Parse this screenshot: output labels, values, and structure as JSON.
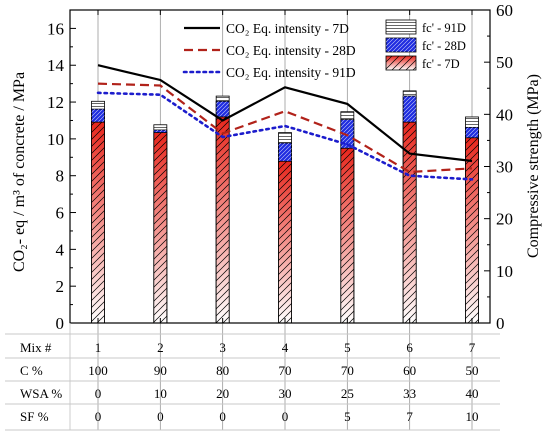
{
  "chart_data": {
    "type": "bar",
    "categories": [
      "1",
      "2",
      "3",
      "4",
      "5",
      "6",
      "7"
    ],
    "left_axis": {
      "label": "CO₂- eq / m³ of concrete / MPa",
      "ylim": [
        0,
        17
      ],
      "ticks": [
        0,
        2,
        4,
        6,
        8,
        10,
        12,
        14,
        16
      ]
    },
    "right_axis": {
      "label": "Compressive strength (MPa)",
      "ylim": [
        0,
        60
      ],
      "ticks": [
        0,
        10,
        20,
        30,
        40,
        50,
        60
      ]
    },
    "bar_series": [
      {
        "name": "fc' - 91D",
        "axis": "right",
        "values": [
          42.5,
          38.0,
          43.5,
          36.5,
          40.5,
          44.5,
          39.5
        ]
      },
      {
        "name": "fc' - 28D",
        "axis": "right",
        "values": [
          41.0,
          37.0,
          42.5,
          34.5,
          39.0,
          43.5,
          37.5
        ]
      },
      {
        "name": "fc' - 7D",
        "axis": "right",
        "values": [
          38.5,
          36.5,
          39.5,
          31.0,
          33.5,
          38.5,
          35.5
        ]
      }
    ],
    "line_series": [
      {
        "name": "CO₂ Eq. intensity - 7D",
        "axis": "left",
        "style": "solid",
        "values": [
          14.0,
          13.2,
          11.0,
          12.8,
          11.9,
          9.2,
          8.8
        ]
      },
      {
        "name": "CO₂ Eq. intensity - 28D",
        "axis": "left",
        "style": "dashed",
        "values": [
          13.0,
          12.9,
          10.3,
          11.5,
          10.2,
          8.2,
          8.4
        ]
      },
      {
        "name": "CO₂ Eq. intensity - 91D",
        "axis": "left",
        "style": "dotted",
        "values": [
          12.5,
          12.4,
          10.1,
          10.7,
          9.7,
          8.0,
          7.8
        ]
      }
    ],
    "legend_placement": "top-right",
    "colors": {
      "line": "#000000",
      "line_dashed": "#b1221a",
      "line_dotted": "#1c1ccc",
      "bar_7d_top": "#e8261c",
      "bar_7d_bottom": "#ffffff",
      "bar_28d": "#1f2ce0",
      "bar_91d": "#ffffff",
      "hatch": "#000000"
    }
  },
  "table": {
    "rows": [
      {
        "label": "Mix #",
        "values": [
          "1",
          "2",
          "3",
          "4",
          "5",
          "6",
          "7"
        ]
      },
      {
        "label": "C %",
        "values": [
          "100",
          "90",
          "80",
          "70",
          "70",
          "60",
          "50"
        ]
      },
      {
        "label": "WSA %",
        "values": [
          "0",
          "10",
          "20",
          "30",
          "25",
          "33",
          "40"
        ]
      },
      {
        "label": "SF %",
        "values": [
          "0",
          "0",
          "0",
          "0",
          "5",
          "7",
          "10"
        ]
      }
    ]
  }
}
